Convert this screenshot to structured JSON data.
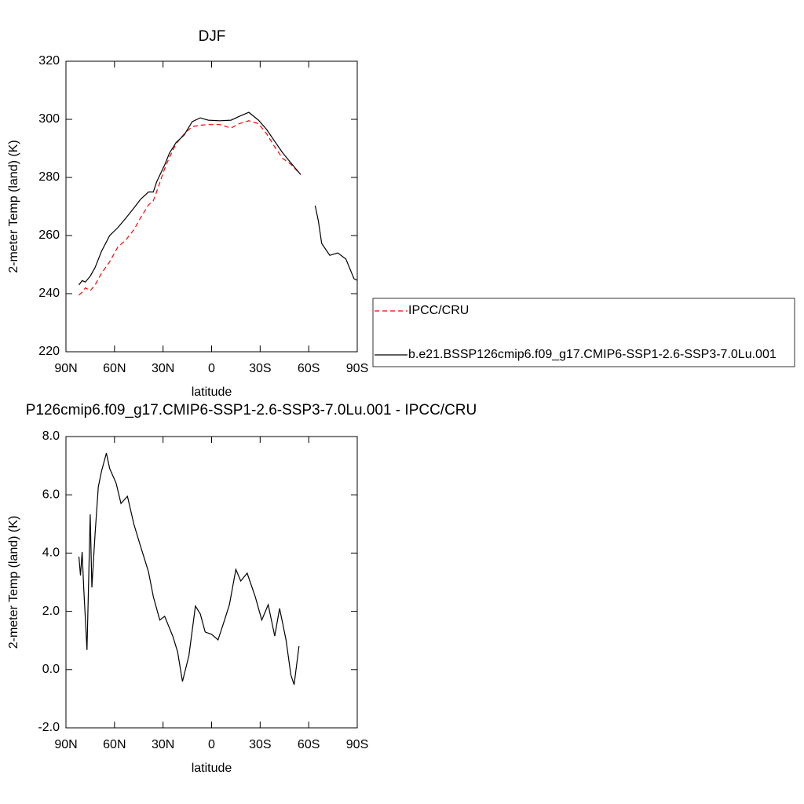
{
  "chart_data": [
    {
      "type": "line",
      "title": "DJF",
      "x_label": "latitude",
      "y_label": "2-meter Temp (land) (K)",
      "x": [
        82,
        80,
        78,
        75,
        72,
        68,
        63,
        58,
        53,
        48,
        44,
        39,
        36,
        34,
        29,
        26,
        22,
        17,
        12,
        7,
        2,
        -5,
        -12,
        -17,
        -23,
        -29,
        -34,
        -39,
        -44,
        -49,
        -55,
        -60,
        -64,
        -66,
        -68,
        -73,
        -78,
        -83,
        -88,
        -90
      ],
      "series": [
        {
          "name": "IPCC/CRU",
          "color": "#ff0000",
          "line_style": "dashed",
          "values": [
            239.5,
            240.5,
            242,
            241,
            243,
            247,
            251,
            256,
            258.5,
            262,
            266,
            270.5,
            272,
            275,
            283,
            287,
            291.5,
            295,
            297.5,
            298,
            298.2,
            298.2,
            297,
            298.5,
            299.5,
            298.5,
            295,
            290.5,
            286.5,
            284.5,
            281,
            null,
            null,
            null,
            null,
            null,
            null,
            null,
            null,
            null
          ]
        },
        {
          "name": "b.e21.BSSP126cmip6.f09_g17.CMIP6-SSP1-2.6-SSP3-7.0Lu.001",
          "color": "#000000",
          "line_style": "solid",
          "values": [
            243,
            244.5,
            244,
            246,
            249,
            254.6,
            260,
            262.7,
            266,
            269.5,
            272.4,
            275,
            275,
            278.4,
            284.3,
            288.4,
            292,
            294.6,
            299.2,
            300.5,
            299.7,
            299.5,
            299.7,
            301,
            302.4,
            299.7,
            296.5,
            292.4,
            288.4,
            285,
            281,
            null,
            270.3,
            265,
            257.3,
            253.2,
            254,
            251.9,
            245.1,
            244.6
          ]
        }
      ],
      "xlim": [
        90,
        -90
      ],
      "xticks": [
        {
          "value": 90,
          "label": "90N"
        },
        {
          "value": 60,
          "label": "60N"
        },
        {
          "value": 30,
          "label": "30N"
        },
        0,
        {
          "value": -30,
          "label": "30S"
        },
        {
          "value": -60,
          "label": "60S"
        },
        {
          "value": -90,
          "label": "90S"
        }
      ],
      "ylim": [
        220,
        320
      ],
      "yticks": [
        220,
        240,
        260,
        280,
        300,
        320
      ],
      "legend": "right"
    },
    {
      "type": "line",
      "title": "P126cmip6.f09_g17.CMIP6-SSP1-2.6-SSP3-7.0Lu.001 - IPCC/CRU",
      "x_label": "latitude",
      "y_label": "2-meter Temp (land) (K)",
      "x": [
        82,
        81,
        80,
        79,
        77,
        75,
        74,
        72,
        70,
        68,
        65,
        63,
        59,
        56,
        52,
        48,
        44,
        39,
        36,
        32,
        29,
        24,
        21,
        18,
        14,
        10,
        7,
        4,
        0,
        -4,
        -8,
        -11,
        -15,
        -18,
        -22,
        -27,
        -31,
        -35,
        -39,
        -42,
        -46,
        -49,
        -51,
        -54
      ],
      "values": [
        3.88,
        3.23,
        4.04,
        2.77,
        0.67,
        5.33,
        2.82,
        4.66,
        6.27,
        6.81,
        7.43,
        6.9,
        6.4,
        5.7,
        5.95,
        4.98,
        4.25,
        3.36,
        2.5,
        1.7,
        1.83,
        1.15,
        0.61,
        -0.41,
        0.48,
        2.18,
        1.91,
        1.29,
        1.21,
        1.02,
        1.7,
        2.23,
        3.44,
        3.04,
        3.31,
        2.5,
        1.7,
        2.23,
        1.15,
        2.1,
        1.02,
        -0.19,
        -0.52,
        0.8
      ],
      "color": "#000000",
      "xlim": [
        90,
        -90
      ],
      "xticks": [
        {
          "value": 90,
          "label": "90N"
        },
        {
          "value": 60,
          "label": "60N"
        },
        {
          "value": 30,
          "label": "30N"
        },
        0,
        {
          "value": -30,
          "label": "30S"
        },
        {
          "value": -60,
          "label": "60S"
        },
        {
          "value": -90,
          "label": "90S"
        }
      ],
      "ylim": [
        -2,
        8
      ],
      "yticks": [
        {
          "value": -2,
          "label": "-2.0"
        },
        {
          "value": 0,
          "label": "0.0"
        },
        {
          "value": 2,
          "label": "2.0"
        },
        {
          "value": 4,
          "label": "4.0"
        },
        {
          "value": 6,
          "label": "6.0"
        },
        {
          "value": 8,
          "label": "8.0"
        }
      ]
    }
  ]
}
